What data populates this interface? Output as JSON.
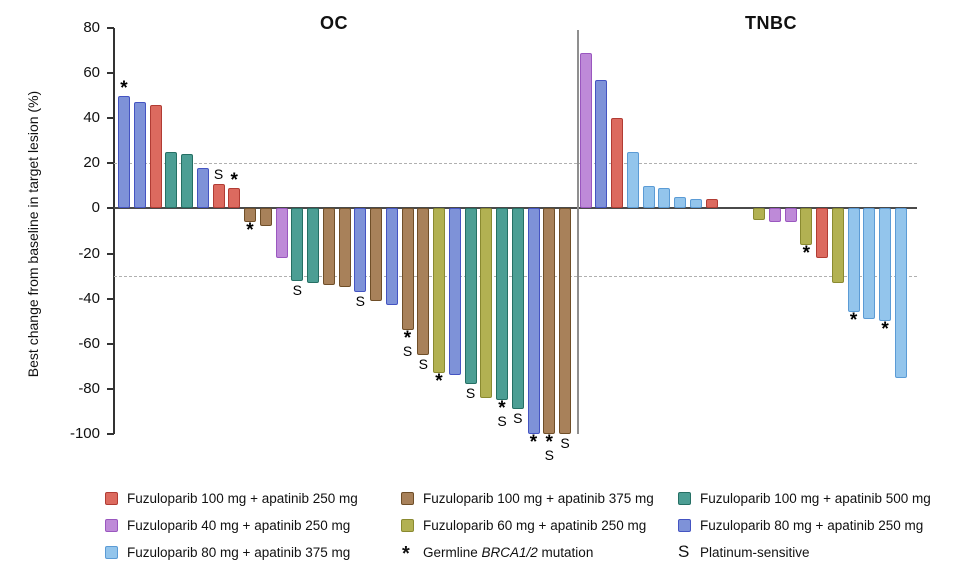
{
  "figure": {
    "ylabel": "Best change from baseline in target lesion (%)",
    "group_titles": {
      "left": "OC",
      "right": "TNBC"
    }
  },
  "chart_data": {
    "type": "bar",
    "subtype": "waterfall",
    "ylabel": "Best change from baseline in target lesion (%)",
    "ylim": [
      -100,
      80
    ],
    "yticks": [
      80,
      60,
      40,
      20,
      0,
      -20,
      -40,
      -60,
      -80,
      -100
    ],
    "reference_lines_dashed": [
      20,
      -30
    ],
    "grid": "off",
    "marks_meaning": {
      "*": "Germline BRCA1/2 mutation",
      "S": "Platinum-sensitive"
    },
    "palette": {
      "red": {
        "fill": "#DC6A5F",
        "stroke": "#B13C34",
        "label": "Fuzuloparib 100 mg + apatinib 250 mg"
      },
      "brown": {
        "fill": "#A8815A",
        "stroke": "#6F4E28",
        "label": "Fuzuloparib 100 mg + apatinib 375 mg"
      },
      "teal": {
        "fill": "#4C9E94",
        "stroke": "#256F64",
        "label": "Fuzuloparib 100 mg + apatinib 500 mg"
      },
      "purple": {
        "fill": "#BE8AD8",
        "stroke": "#9A57BF",
        "label": "Fuzuloparib 40 mg + apatinib 250 mg"
      },
      "olive": {
        "fill": "#B2B152",
        "stroke": "#8A8A30",
        "label": "Fuzuloparib 60 mg + apatinib 250 mg"
      },
      "royalblue": {
        "fill": "#7E92D8",
        "stroke": "#4454C2",
        "label": "Fuzuloparib 80 mg + apatinib 250 mg"
      },
      "skyblue": {
        "fill": "#93C5EC",
        "stroke": "#5B9BD5",
        "label": "Fuzuloparib 80 mg + apatinib 375 mg"
      }
    },
    "groups": [
      {
        "title": "OC",
        "bars": [
          {
            "value": 50,
            "color": "royalblue",
            "mark": "*"
          },
          {
            "value": 47,
            "color": "royalblue",
            "mark": ""
          },
          {
            "value": 46,
            "color": "red",
            "mark": ""
          },
          {
            "value": 25,
            "color": "teal",
            "mark": ""
          },
          {
            "value": 24,
            "color": "teal",
            "mark": ""
          },
          {
            "value": 18,
            "color": "royalblue",
            "mark": ""
          },
          {
            "value": 11,
            "color": "red",
            "mark": "S"
          },
          {
            "value": 9,
            "color": "red",
            "mark": "*"
          },
          {
            "value": -6,
            "color": "brown",
            "mark": "*"
          },
          {
            "value": -8,
            "color": "brown",
            "mark": ""
          },
          {
            "value": -22,
            "color": "purple",
            "mark": ""
          },
          {
            "value": -32,
            "color": "teal",
            "mark": "S"
          },
          {
            "value": -33,
            "color": "teal",
            "mark": ""
          },
          {
            "value": -34,
            "color": "brown",
            "mark": ""
          },
          {
            "value": -35,
            "color": "brown",
            "mark": ""
          },
          {
            "value": -37,
            "color": "royalblue",
            "mark": "S"
          },
          {
            "value": -41,
            "color": "brown",
            "mark": ""
          },
          {
            "value": -43,
            "color": "royalblue",
            "mark": ""
          },
          {
            "value": -54,
            "color": "brown",
            "mark": "*S"
          },
          {
            "value": -65,
            "color": "brown",
            "mark": "S"
          },
          {
            "value": -73,
            "color": "olive",
            "mark": "*"
          },
          {
            "value": -74,
            "color": "royalblue",
            "mark": ""
          },
          {
            "value": -78,
            "color": "teal",
            "mark": "S"
          },
          {
            "value": -84,
            "color": "olive",
            "mark": ""
          },
          {
            "value": -85,
            "color": "teal",
            "mark": "*S"
          },
          {
            "value": -89,
            "color": "teal",
            "mark": "S"
          },
          {
            "value": -100,
            "color": "royalblue",
            "mark": "*"
          },
          {
            "value": -100,
            "color": "brown",
            "mark": "*S"
          },
          {
            "value": -100,
            "color": "brown",
            "mark": "S"
          }
        ]
      },
      {
        "title": "TNBC",
        "bars": [
          {
            "value": 69,
            "color": "purple",
            "mark": ""
          },
          {
            "value": 57,
            "color": "royalblue",
            "mark": ""
          },
          {
            "value": 40,
            "color": "red",
            "mark": ""
          },
          {
            "value": 25,
            "color": "skyblue",
            "mark": ""
          },
          {
            "value": 10,
            "color": "skyblue",
            "mark": ""
          },
          {
            "value": 9,
            "color": "skyblue",
            "mark": ""
          },
          {
            "value": 5,
            "color": "skyblue",
            "mark": ""
          },
          {
            "value": 4,
            "color": "skyblue",
            "mark": ""
          },
          {
            "value": 4,
            "color": "red",
            "mark": ""
          },
          {
            "value": 0,
            "color": "none",
            "mark": ""
          },
          {
            "value": 0,
            "color": "none",
            "mark": ""
          },
          {
            "value": -5,
            "color": "olive",
            "mark": ""
          },
          {
            "value": -6,
            "color": "purple",
            "mark": ""
          },
          {
            "value": -6,
            "color": "purple",
            "mark": ""
          },
          {
            "value": -16,
            "color": "olive",
            "mark": "*"
          },
          {
            "value": -22,
            "color": "red",
            "mark": ""
          },
          {
            "value": -33,
            "color": "olive",
            "mark": ""
          },
          {
            "value": -46,
            "color": "skyblue",
            "mark": "*"
          },
          {
            "value": -49,
            "color": "skyblue",
            "mark": ""
          },
          {
            "value": -50,
            "color": "skyblue",
            "mark": "*"
          },
          {
            "value": -75,
            "color": "skyblue",
            "mark": ""
          }
        ]
      }
    ]
  },
  "legend": {
    "items": [
      {
        "type": "swatch",
        "color": "red",
        "label": "Fuzuloparib 100 mg + apatinib 250 mg"
      },
      {
        "type": "swatch",
        "color": "brown",
        "label": "Fuzuloparib 100 mg + apatinib 375 mg"
      },
      {
        "type": "swatch",
        "color": "teal",
        "label": "Fuzuloparib 100 mg + apatinib 500 mg"
      },
      {
        "type": "swatch",
        "color": "purple",
        "label": "Fuzuloparib 40 mg + apatinib 250 mg"
      },
      {
        "type": "swatch",
        "color": "olive",
        "label": "Fuzuloparib 60 mg + apatinib 250 mg"
      },
      {
        "type": "swatch",
        "color": "royalblue",
        "label": "Fuzuloparib 80 mg + apatinib 250 mg"
      },
      {
        "type": "swatch",
        "color": "skyblue",
        "label": "Fuzuloparib 80 mg + apatinib 375 mg"
      },
      {
        "type": "symbol",
        "symbol": "*",
        "label_parts": [
          "Germline ",
          "BRCA1/2",
          " mutation"
        ],
        "italic_part": 1
      },
      {
        "type": "symbol",
        "symbol": "S",
        "label": "Platinum-sensitive"
      }
    ]
  }
}
